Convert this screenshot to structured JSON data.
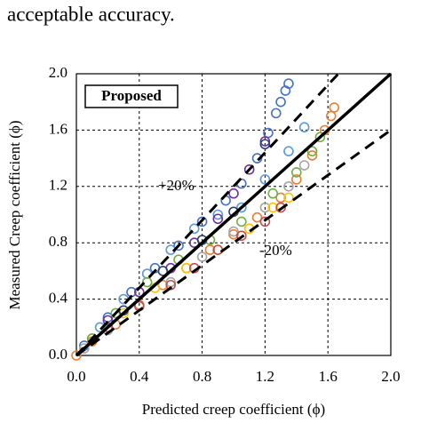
{
  "caption": "acceptable accuracy.",
  "chart_data": {
    "type": "scatter",
    "xlabel": "Predicted creep coefficient (ϕ)",
    "ylabel": "Measured Creep coefficient (ϕ)",
    "label_box": "Proposed",
    "annotations": [
      "+20%",
      "-20%"
    ],
    "reference_lines": [
      {
        "slope": 1,
        "style": "solid"
      },
      {
        "slope": 1.2,
        "style": "dashed"
      },
      {
        "slope": 0.8,
        "style": "dashed"
      }
    ],
    "xlim": [
      0,
      2
    ],
    "ylim": [
      0,
      2
    ],
    "xticks": [
      {
        "value": 0,
        "label": "0.0"
      },
      0.4,
      0.8,
      1.2,
      1.6,
      {
        "value": 2,
        "label": "2.0"
      }
    ],
    "yticks": [
      {
        "value": 0,
        "label": "0.0"
      },
      0.4,
      0.8,
      1.2,
      1.6,
      {
        "value": 2,
        "label": "2.0"
      }
    ],
    "grid": true,
    "series": [
      {
        "color": "#4472c4",
        "x": [
          0.05,
          0.2,
          0.35,
          0.5,
          0.65,
          0.8,
          0.95,
          1.05,
          1.15,
          1.22,
          1.27,
          1.3,
          1.33,
          1.35
        ],
        "values": [
          0.07,
          0.27,
          0.45,
          0.62,
          0.78,
          0.95,
          1.1,
          1.22,
          1.4,
          1.58,
          1.72,
          1.8,
          1.88,
          1.93
        ]
      },
      {
        "color": "#ed7d31",
        "x": [
          0,
          0.1,
          0.25,
          0.4,
          0.55,
          0.7,
          0.85,
          1.0,
          1.15,
          1.3,
          1.4,
          1.5,
          1.58,
          1.62,
          1.64
        ],
        "values": [
          0,
          0.1,
          0.22,
          0.36,
          0.5,
          0.62,
          0.75,
          0.86,
          0.98,
          1.12,
          1.25,
          1.42,
          1.6,
          1.7,
          1.76
        ]
      },
      {
        "color": "#a5a5a5",
        "x": [
          0.05,
          0.2,
          0.4,
          0.6,
          0.8,
          1.0,
          1.2,
          1.35,
          1.45
        ],
        "values": [
          0.05,
          0.18,
          0.35,
          0.52,
          0.7,
          0.88,
          1.05,
          1.2,
          1.35
        ]
      },
      {
        "color": "#ffc000",
        "x": [
          0.1,
          0.3,
          0.5,
          0.7,
          0.9,
          1.1,
          1.25,
          1.35
        ],
        "values": [
          0.12,
          0.3,
          0.48,
          0.62,
          0.75,
          0.9,
          1.05,
          1.12
        ]
      },
      {
        "color": "#5b9bd5",
        "x": [
          0.15,
          0.3,
          0.45,
          0.6,
          0.75,
          0.9,
          1.05,
          1.2,
          1.35,
          1.45
        ],
        "values": [
          0.2,
          0.4,
          0.58,
          0.75,
          0.9,
          1.0,
          1.05,
          1.25,
          1.45,
          1.62
        ]
      },
      {
        "color": "#70ad47",
        "x": [
          0.1,
          0.25,
          0.45,
          0.65,
          0.85,
          1.05,
          1.25,
          1.4,
          1.5,
          1.55
        ],
        "values": [
          0.12,
          0.3,
          0.52,
          0.68,
          0.82,
          0.95,
          1.15,
          1.3,
          1.45,
          1.55
        ]
      },
      {
        "color": "#7030a0",
        "x": [
          0.2,
          0.4,
          0.6,
          0.75,
          0.9,
          1.0,
          1.1,
          1.2
        ],
        "values": [
          0.25,
          0.45,
          0.62,
          0.8,
          0.97,
          1.15,
          1.32,
          1.52
        ]
      },
      {
        "color": "#c0504d",
        "x": [
          0.2,
          0.4,
          0.6,
          0.75,
          0.9,
          1.05,
          1.2,
          1.3
        ],
        "values": [
          0.2,
          0.35,
          0.5,
          0.62,
          0.75,
          0.85,
          0.95,
          1.05
        ]
      },
      {
        "color": "#264478",
        "x": [
          0.3,
          0.55,
          0.8,
          1.0,
          1.2
        ],
        "values": [
          0.32,
          0.6,
          0.82,
          1.02,
          1.5
        ]
      }
    ]
  }
}
